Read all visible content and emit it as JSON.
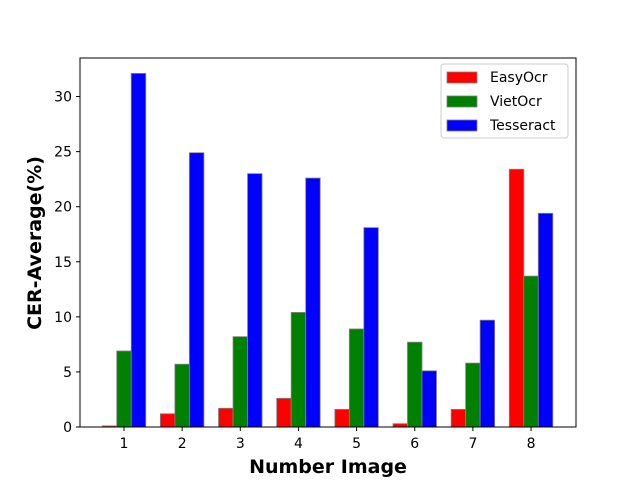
{
  "chart_data": {
    "type": "bar",
    "title": "",
    "xlabel": "Number Image",
    "ylabel": "CER-Average(%)",
    "categories": [
      "1",
      "2",
      "3",
      "4",
      "5",
      "6",
      "7",
      "8"
    ],
    "ylim": [
      0,
      33.5
    ],
    "yticks": [
      0,
      5,
      10,
      15,
      20,
      25,
      30
    ],
    "grid": false,
    "legend_position": "top-right",
    "series": [
      {
        "name": "EasyOcr",
        "color": "#ff0000",
        "values": [
          0.1,
          1.2,
          1.7,
          2.6,
          1.6,
          0.3,
          1.6,
          23.4
        ]
      },
      {
        "name": "VietOcr",
        "color": "#008000",
        "values": [
          6.9,
          5.7,
          8.2,
          10.4,
          8.9,
          7.7,
          5.8,
          13.7
        ]
      },
      {
        "name": "Tesseract",
        "color": "#0000ff",
        "values": [
          32.1,
          24.9,
          23.0,
          22.6,
          18.1,
          5.1,
          9.7,
          19.4
        ]
      }
    ]
  }
}
